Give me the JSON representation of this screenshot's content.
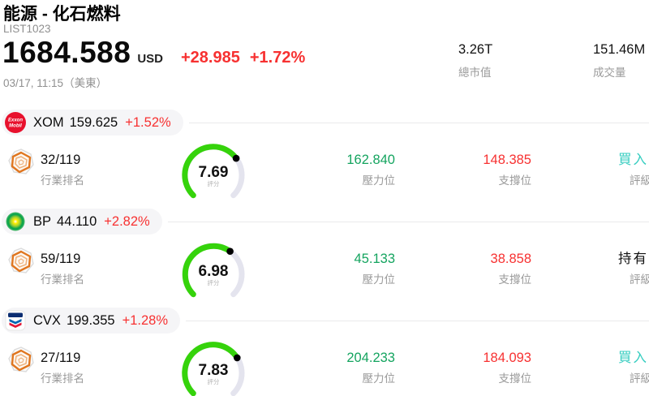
{
  "header": {
    "title": "能源 - 化石燃料",
    "list_id": "LIST1023",
    "price": "1684.588",
    "currency": "USD",
    "change_abs": "+28.985",
    "change_pct": "+1.72%",
    "timestamp": "03/17, 11:15（美東）",
    "stats": [
      {
        "value": "3.26T",
        "label": "總市值"
      },
      {
        "value": "151.46M",
        "label": "成交量"
      }
    ]
  },
  "rows": [
    {
      "symbol": "XOM",
      "price": "159.625",
      "change_pct": "+1.52%",
      "logo": "exxonmobil-logo",
      "logo_line1": "Exxon",
      "logo_line2": "Mobil",
      "rank": "32/119",
      "rank_label": "行業排名",
      "score": 7.69,
      "score_label": "評分",
      "resistance": "162.840",
      "resistance_label": "壓力位",
      "support": "148.385",
      "support_label": "支撐位",
      "rating": "買入",
      "rating_label": "評級",
      "rating_type": "buy"
    },
    {
      "symbol": "BP",
      "price": "44.110",
      "change_pct": "+2.82%",
      "logo": "bp-logo",
      "rank": "59/119",
      "rank_label": "行業排名",
      "score": 6.98,
      "score_label": "評分",
      "resistance": "45.133",
      "resistance_label": "壓力位",
      "support": "38.858",
      "support_label": "支撐位",
      "rating": "持有",
      "rating_label": "評級",
      "rating_type": "hold"
    },
    {
      "symbol": "CVX",
      "price": "199.355",
      "change_pct": "+1.28%",
      "logo": "chevron-logo",
      "rank": "27/119",
      "rank_label": "行業排名",
      "score": 7.83,
      "score_label": "評分",
      "resistance": "204.233",
      "resistance_label": "壓力位",
      "support": "184.093",
      "support_label": "支撐位",
      "rating": "買入",
      "rating_label": "評級",
      "rating_type": "buy"
    }
  ],
  "colors": {
    "up_red": "#f73131",
    "resist_green": "#14a45f",
    "buy_teal": "#35cdc0",
    "hold_black": "#111111",
    "gauge_green": "#35d30b",
    "gauge_track": "#e4e4ee",
    "pill_bg": "#f5f5f7",
    "label_gray": "#9a9a9a"
  }
}
